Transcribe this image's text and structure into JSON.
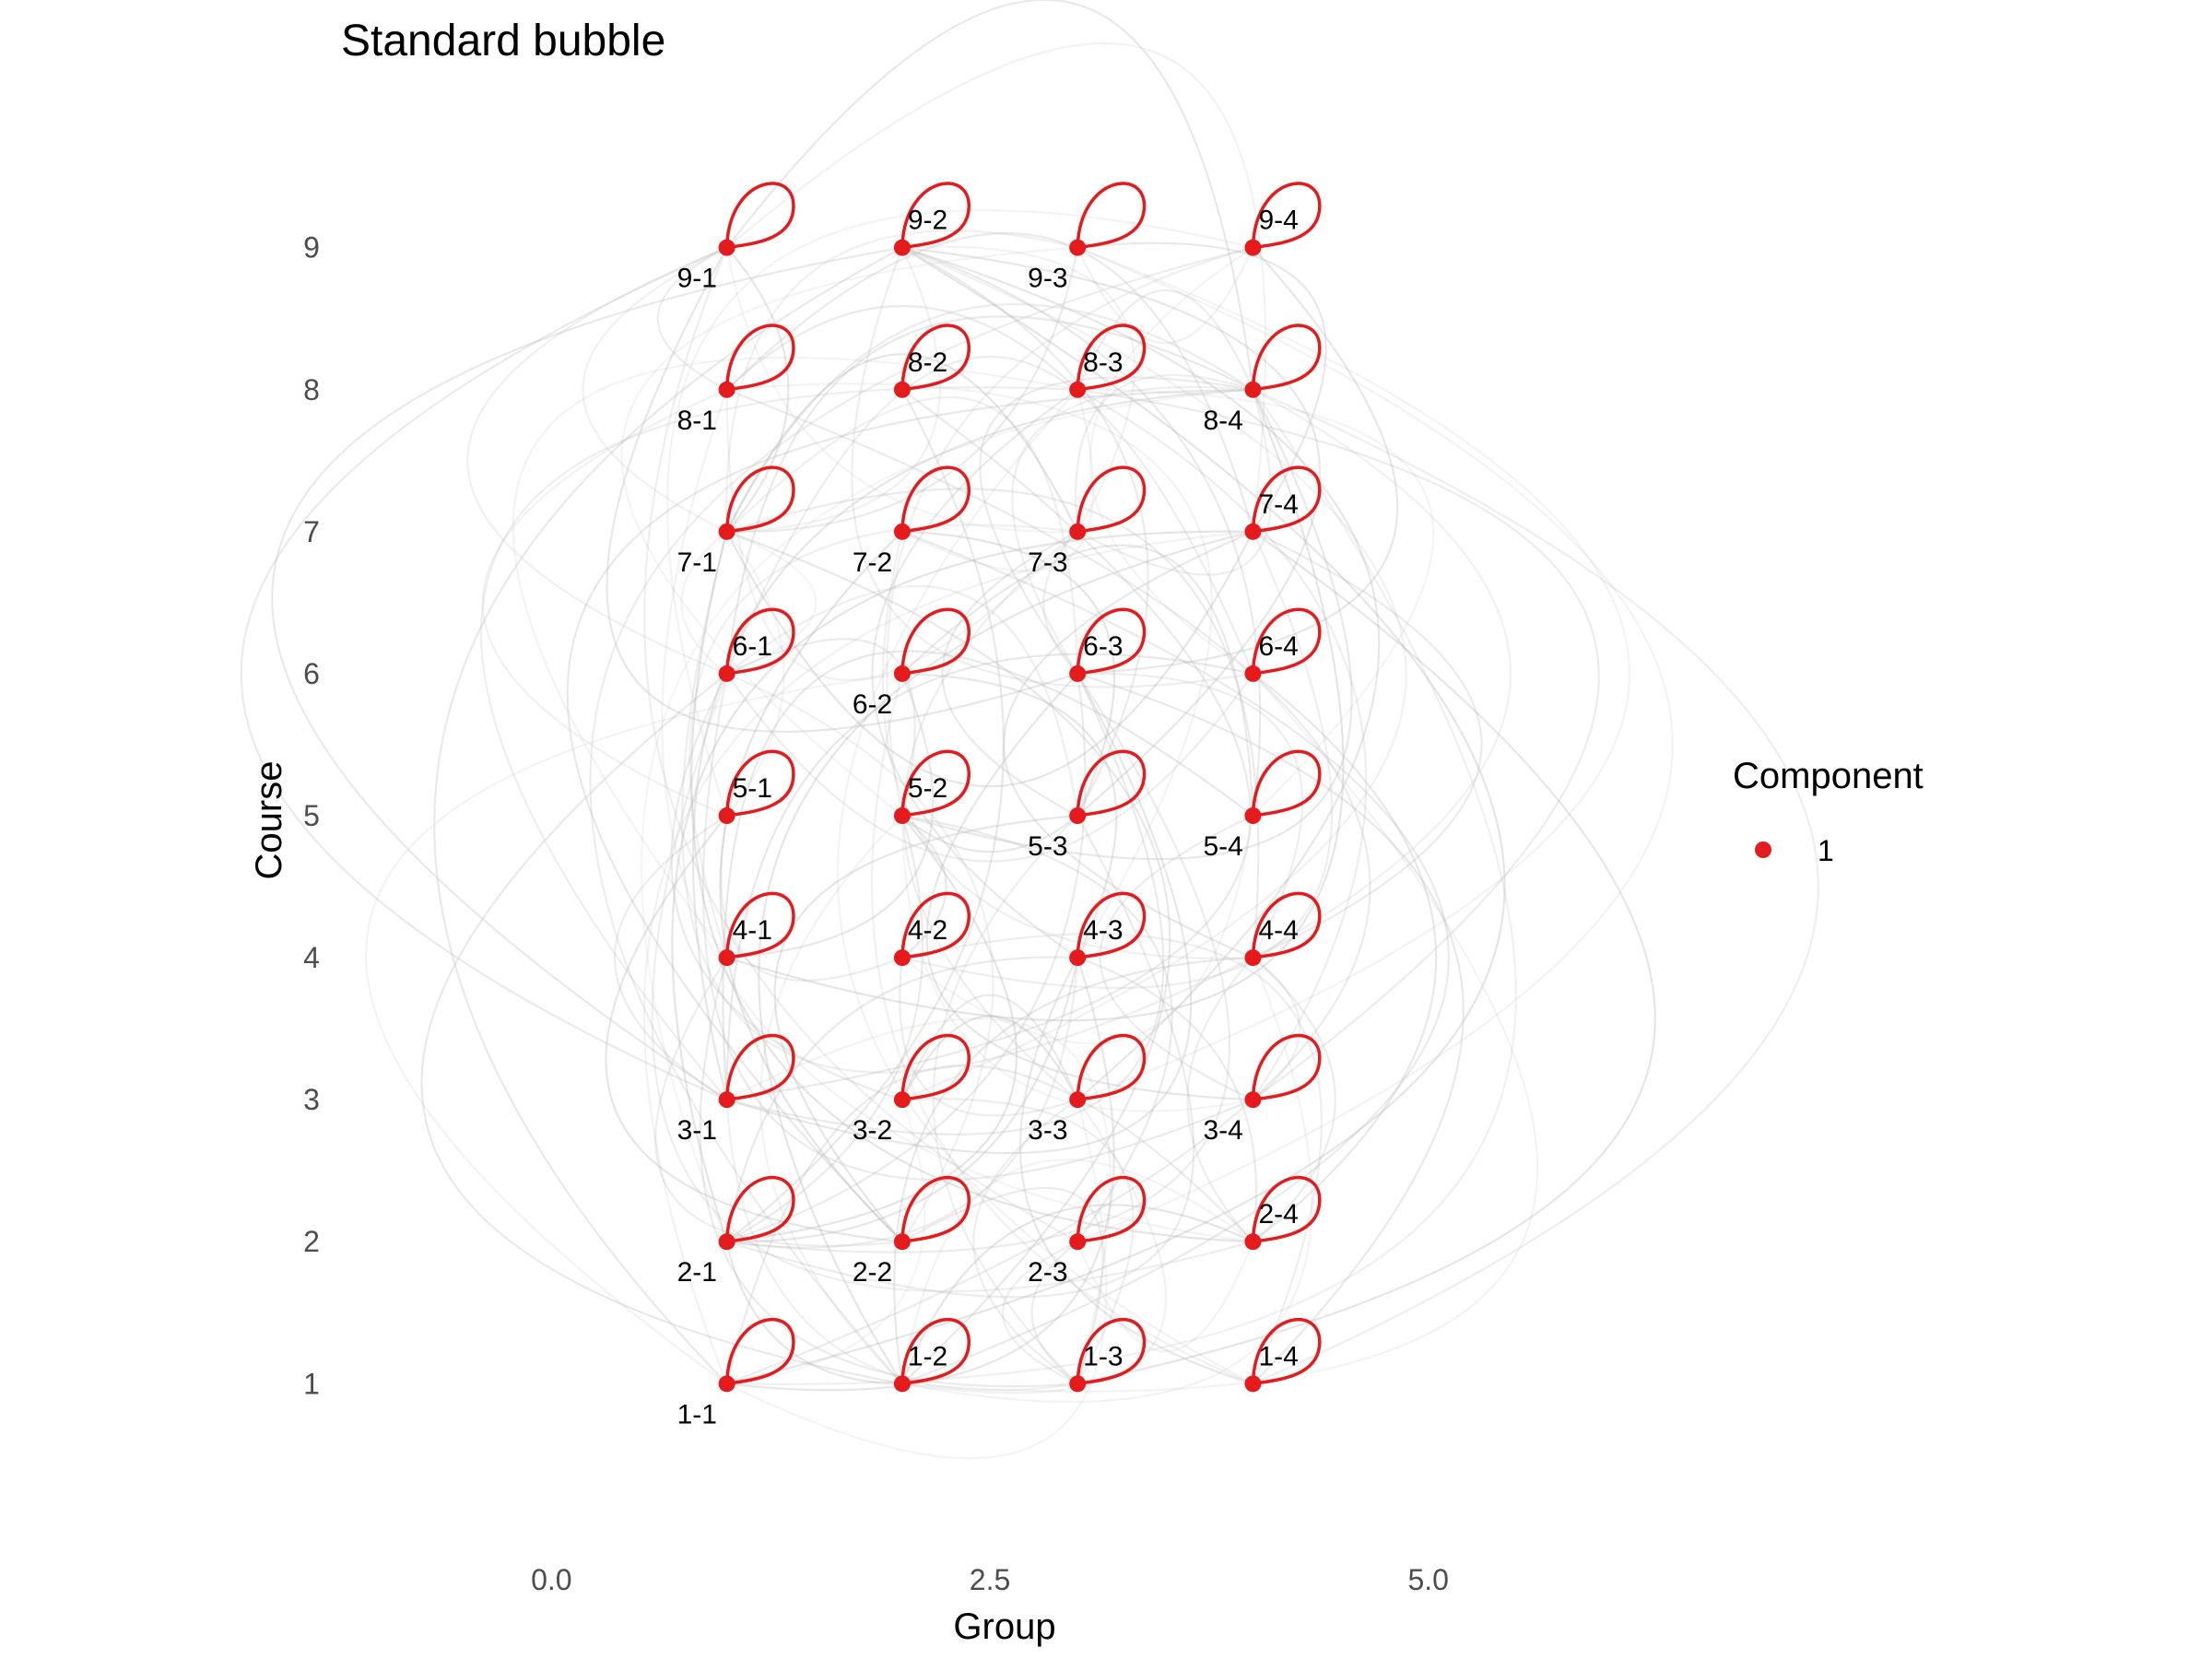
{
  "chart_data": {
    "type": "network-bubble",
    "title": "Standard bubble",
    "xlabel": "Group",
    "ylabel": "Course",
    "xlim": [
      -1.2,
      6.0
    ],
    "ylim": [
      0.1,
      9.9
    ],
    "x_ticks": [
      {
        "value": 0.0,
        "label": "0.0"
      },
      {
        "value": 2.5,
        "label": "2.5"
      },
      {
        "value": 5.0,
        "label": "5.0"
      }
    ],
    "y_ticks": [
      {
        "value": 1,
        "label": "1"
      },
      {
        "value": 2,
        "label": "2"
      },
      {
        "value": 3,
        "label": "3"
      },
      {
        "value": 4,
        "label": "4"
      },
      {
        "value": 5,
        "label": "5"
      },
      {
        "value": 6,
        "label": "6"
      },
      {
        "value": 7,
        "label": "7"
      },
      {
        "value": 8,
        "label": "8"
      },
      {
        "value": 9,
        "label": "9"
      }
    ],
    "legend": {
      "title": "Component",
      "position": "right",
      "entries": [
        {
          "label": "1",
          "color": "#e41a1c"
        }
      ]
    },
    "node_color": "#e41a1c",
    "edge_color": "#bdbdbd",
    "nodes": [
      {
        "label": "1-1",
        "x": 1,
        "y": 1,
        "label_pos": "below"
      },
      {
        "label": "1-2",
        "x": 2,
        "y": 1,
        "label_pos": "above"
      },
      {
        "label": "1-3",
        "x": 3,
        "y": 1,
        "label_pos": "above"
      },
      {
        "label": "1-4",
        "x": 4,
        "y": 1,
        "label_pos": "above"
      },
      {
        "label": "2-1",
        "x": 1,
        "y": 2,
        "label_pos": "below"
      },
      {
        "label": "2-2",
        "x": 2,
        "y": 2,
        "label_pos": "below"
      },
      {
        "label": "2-3",
        "x": 3,
        "y": 2,
        "label_pos": "below"
      },
      {
        "label": "2-4",
        "x": 4,
        "y": 2,
        "label_pos": "above"
      },
      {
        "label": "3-1",
        "x": 1,
        "y": 3,
        "label_pos": "below"
      },
      {
        "label": "3-2",
        "x": 2,
        "y": 3,
        "label_pos": "below"
      },
      {
        "label": "3-3",
        "x": 3,
        "y": 3,
        "label_pos": "below"
      },
      {
        "label": "3-4",
        "x": 4,
        "y": 3,
        "label_pos": "below"
      },
      {
        "label": "4-1",
        "x": 1,
        "y": 4,
        "label_pos": "above"
      },
      {
        "label": "4-2",
        "x": 2,
        "y": 4,
        "label_pos": "above"
      },
      {
        "label": "4-3",
        "x": 3,
        "y": 4,
        "label_pos": "above"
      },
      {
        "label": "4-4",
        "x": 4,
        "y": 4,
        "label_pos": "above"
      },
      {
        "label": "5-1",
        "x": 1,
        "y": 5,
        "label_pos": "above"
      },
      {
        "label": "5-2",
        "x": 2,
        "y": 5,
        "label_pos": "above"
      },
      {
        "label": "5-3",
        "x": 3,
        "y": 5,
        "label_pos": "below"
      },
      {
        "label": "5-4",
        "x": 4,
        "y": 5,
        "label_pos": "below"
      },
      {
        "label": "6-1",
        "x": 1,
        "y": 6,
        "label_pos": "above"
      },
      {
        "label": "6-2",
        "x": 2,
        "y": 6,
        "label_pos": "below"
      },
      {
        "label": "6-3",
        "x": 3,
        "y": 6,
        "label_pos": "above"
      },
      {
        "label": "6-4",
        "x": 4,
        "y": 6,
        "label_pos": "above"
      },
      {
        "label": "7-1",
        "x": 1,
        "y": 7,
        "label_pos": "below"
      },
      {
        "label": "7-2",
        "x": 2,
        "y": 7,
        "label_pos": "below"
      },
      {
        "label": "7-3",
        "x": 3,
        "y": 7,
        "label_pos": "below"
      },
      {
        "label": "7-4",
        "x": 4,
        "y": 7,
        "label_pos": "above"
      },
      {
        "label": "8-1",
        "x": 1,
        "y": 8,
        "label_pos": "below"
      },
      {
        "label": "8-2",
        "x": 2,
        "y": 8,
        "label_pos": "above"
      },
      {
        "label": "8-3",
        "x": 3,
        "y": 8,
        "label_pos": "above"
      },
      {
        "label": "8-4",
        "x": 4,
        "y": 8,
        "label_pos": "below"
      },
      {
        "label": "9-1",
        "x": 1,
        "y": 9,
        "label_pos": "below"
      },
      {
        "label": "9-2",
        "x": 2,
        "y": 9,
        "label_pos": "above"
      },
      {
        "label": "9-3",
        "x": 3,
        "y": 9,
        "label_pos": "below"
      },
      {
        "label": "9-4",
        "x": 4,
        "y": 9,
        "label_pos": "above"
      }
    ]
  }
}
